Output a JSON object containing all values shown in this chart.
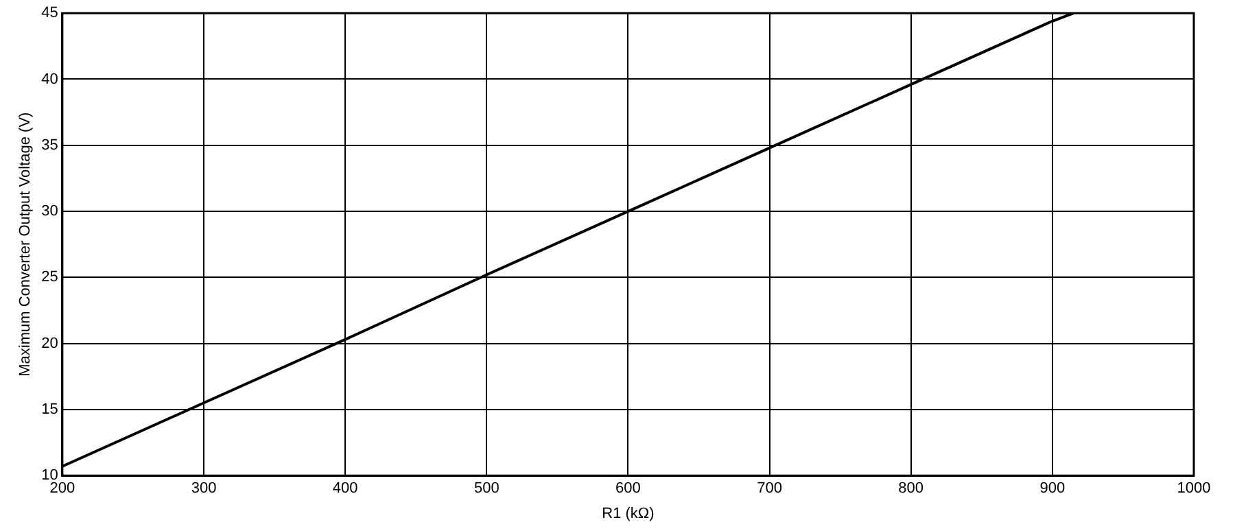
{
  "chart_data": {
    "type": "line",
    "xlabel": "R1 (kΩ)",
    "ylabel": "Maximum Converter Output Voltage (V)",
    "x": [
      200,
      300,
      400,
      500,
      600,
      700,
      800,
      900,
      915
    ],
    "series": [
      {
        "color": "#000000",
        "values": [
          10.7,
          15.5,
          20.3,
          25.2,
          30,
          34.8,
          39.6,
          44.4,
          45
        ]
      }
    ],
    "xlim": [
      200,
      1000
    ],
    "xticks": [
      200,
      300,
      400,
      500,
      600,
      700,
      800,
      900,
      1000
    ],
    "ylim": [
      10,
      45
    ],
    "yticks": [
      10,
      15,
      20,
      25,
      30,
      35,
      40,
      45
    ],
    "grid": true,
    "legend": false,
    "marker": "none",
    "line_style": "solid"
  }
}
